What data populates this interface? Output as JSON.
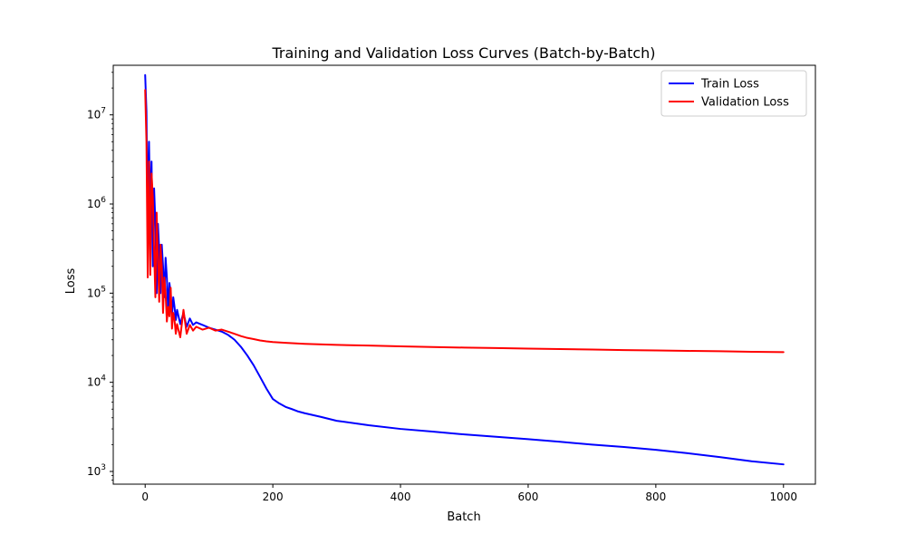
{
  "chart_data": {
    "type": "line",
    "title": "Training and Validation Loss Curves (Batch-by-Batch)",
    "xlabel": "Batch",
    "ylabel": "Loss",
    "xlim": [
      -50,
      1050
    ],
    "ylim": [
      720,
      36000000
    ],
    "yscale": "log",
    "grid": false,
    "legend_position": "top-right",
    "x_ticks": [
      0,
      200,
      400,
      600,
      800,
      1000
    ],
    "x_tick_labels": [
      "0",
      "200",
      "400",
      "600",
      "800",
      "1000"
    ],
    "y_ticks": [
      1000,
      10000,
      100000,
      1000000,
      10000000
    ],
    "y_tick_labels": [
      {
        "base": "10",
        "exp": "3"
      },
      {
        "base": "10",
        "exp": "4"
      },
      {
        "base": "10",
        "exp": "5"
      },
      {
        "base": "10",
        "exp": "6"
      },
      {
        "base": "10",
        "exp": "7"
      }
    ],
    "series": [
      {
        "name": "Train Loss",
        "color": "#0000ff",
        "x": [
          0,
          2,
          4,
          6,
          8,
          10,
          12,
          14,
          16,
          18,
          20,
          22,
          24,
          26,
          28,
          30,
          32,
          34,
          36,
          38,
          40,
          42,
          44,
          46,
          48,
          50,
          55,
          60,
          65,
          70,
          75,
          80,
          90,
          100,
          110,
          120,
          130,
          140,
          150,
          160,
          170,
          180,
          190,
          200,
          210,
          220,
          230,
          240,
          250,
          275,
          300,
          350,
          400,
          450,
          500,
          550,
          600,
          650,
          700,
          750,
          800,
          850,
          900,
          950,
          1000
        ],
        "y": [
          28000000,
          11000000,
          600000,
          5000000,
          800000,
          3000000,
          200000,
          1500000,
          600000,
          100000,
          600000,
          300000,
          100000,
          350000,
          200000,
          90000,
          250000,
          150000,
          60000,
          130000,
          100000,
          55000,
          90000,
          70000,
          50000,
          65000,
          45000,
          60000,
          42000,
          52000,
          44000,
          47000,
          44000,
          41000,
          39000,
          37000,
          34000,
          30000,
          25000,
          20000,
          15500,
          11500,
          8500,
          6500,
          5800,
          5300,
          5000,
          4700,
          4500,
          4100,
          3700,
          3300,
          3000,
          2800,
          2600,
          2450,
          2300,
          2150,
          2000,
          1880,
          1750,
          1600,
          1450,
          1300,
          1200
        ]
      },
      {
        "name": "Validation Loss",
        "color": "#ff0000",
        "x": [
          0,
          2,
          4,
          6,
          8,
          10,
          12,
          14,
          16,
          18,
          20,
          22,
          24,
          26,
          28,
          30,
          32,
          34,
          36,
          38,
          40,
          42,
          44,
          46,
          48,
          50,
          55,
          60,
          65,
          70,
          75,
          80,
          90,
          100,
          110,
          120,
          130,
          140,
          150,
          160,
          170,
          180,
          190,
          200,
          220,
          250,
          300,
          350,
          400,
          450,
          500,
          550,
          600,
          650,
          700,
          750,
          800,
          850,
          900,
          950,
          1000
        ],
        "y": [
          19000000,
          5000000,
          150000,
          3000000,
          160000,
          2200000,
          1200000,
          300000,
          90000,
          800000,
          250000,
          80000,
          350000,
          200000,
          60000,
          150000,
          100000,
          48000,
          70000,
          55000,
          115000,
          40000,
          60000,
          50000,
          35000,
          45000,
          32000,
          65000,
          35000,
          44000,
          38000,
          42000,
          39000,
          41000,
          38000,
          39000,
          37000,
          35000,
          33000,
          31500,
          30500,
          29500,
          28800,
          28300,
          27700,
          27000,
          26300,
          25800,
          25300,
          24900,
          24500,
          24200,
          23900,
          23600,
          23300,
          23000,
          22800,
          22500,
          22300,
          22000,
          21800
        ]
      }
    ]
  }
}
